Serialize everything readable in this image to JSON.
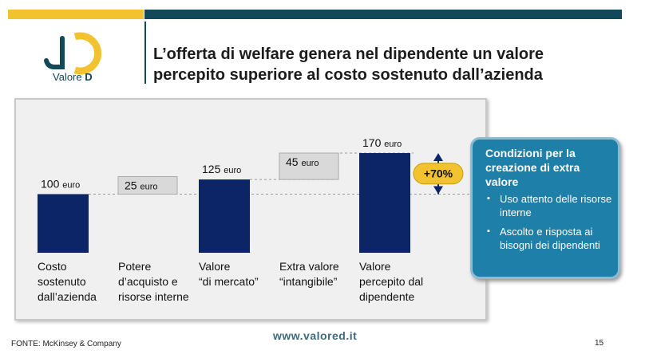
{
  "header": {
    "title_line1": "L’offerta di welfare genera nel dipendente un valore",
    "title_line2": "percepito superiore al costo sostenuto dall’azienda",
    "accent_yellow": "#f2c230",
    "accent_teal": "#12495a"
  },
  "logo": {
    "text_prefix": "Valore",
    "text_suffix": "D"
  },
  "chart_data": {
    "type": "bar",
    "subtype": "waterfall",
    "unit": "euro",
    "categories": [
      [
        "Costo",
        "sostenuto",
        "dall’azienda"
      ],
      [
        "Potere",
        "d’acquisto e",
        "risorse interne"
      ],
      [
        "Valore",
        "“di mercato”"
      ],
      [
        "Extra valore",
        "“intangibile”"
      ],
      [
        "Valore",
        "percepito dal",
        "dipendente"
      ]
    ],
    "bars": [
      {
        "kind": "total",
        "base": 0,
        "value": 100,
        "label_number": "100",
        "label_unit": "euro"
      },
      {
        "kind": "increment",
        "base": 100,
        "value": 25,
        "label_number": "25",
        "label_unit": "euro"
      },
      {
        "kind": "total",
        "base": 0,
        "value": 125,
        "label_number": "125",
        "label_unit": "euro"
      },
      {
        "kind": "increment",
        "base": 125,
        "value": 45,
        "label_number": "45",
        "label_unit": "euro"
      },
      {
        "kind": "total",
        "base": 0,
        "value": 170,
        "label_number": "170",
        "label_unit": "euro"
      }
    ],
    "ylim": [
      0,
      170
    ],
    "grid": false,
    "annotation": {
      "text": "+70%",
      "from": 100,
      "to": 170
    },
    "colors": {
      "total": "#0b2566",
      "increment": "#d9d9d9",
      "badge": "#f2c230",
      "arrow": "#0b2566"
    }
  },
  "callout": {
    "title": "Condizioni per la creazione di extra valore",
    "items": [
      "Uso attento delle risorse interne",
      "Ascolto e risposta ai bisogni dei dipendenti"
    ],
    "bullet": "▪",
    "color": "#1e7fa8"
  },
  "footer": {
    "source": "FONTE: McKinsey & Company",
    "website": "www.valored.it",
    "page_number": "15"
  }
}
